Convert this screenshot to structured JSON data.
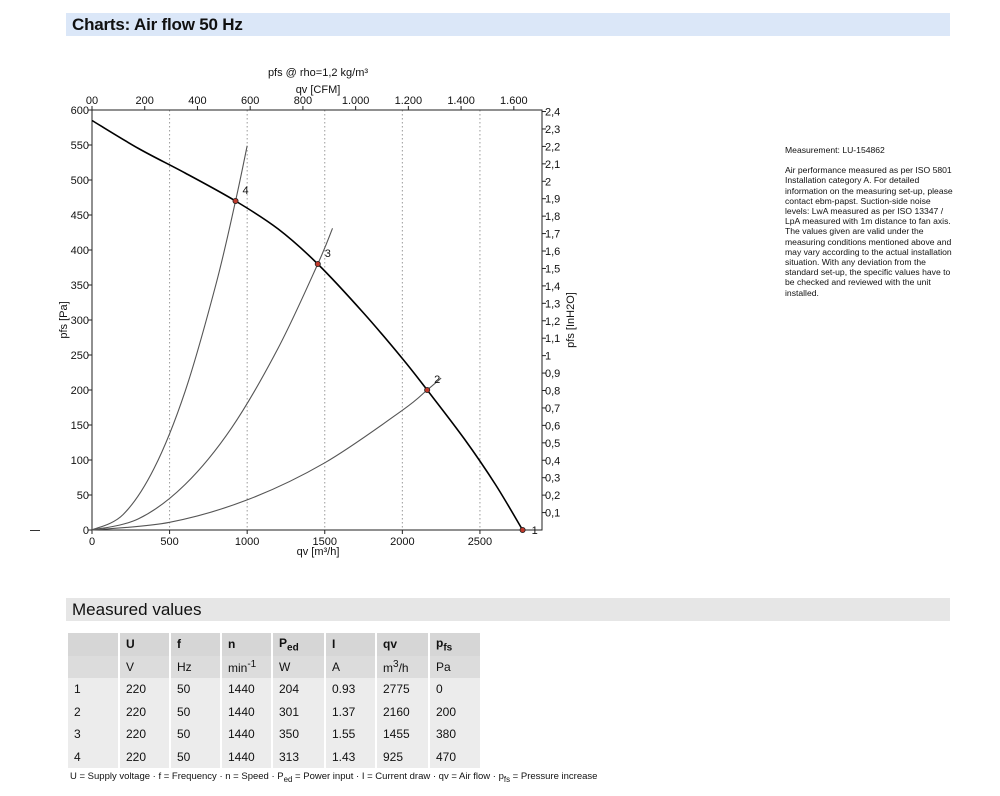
{
  "page": {
    "section_title": "Charts: Air flow 50 Hz",
    "measured_title": "Measured values"
  },
  "notes": {
    "measurement": "Measurement: LU-154862",
    "body": "Air performance measured as per ISO 5801 Installation category A. For detailed information on the measuring set-up, please contact ebm-papst. Suction-side noise levels: LwA measured as per ISO 13347 / LpA measured with 1m distance to fan axis. The values given are valid under the measuring conditions mentioned above and may vary according to the actual installation situation. With any deviation from the standard set-up, the specific values have to be checked and reviewed with the unit installed."
  },
  "chart_data": {
    "type": "line",
    "title": "pfs @ rho=1,2 kg/m³",
    "xlabel": "qv [m³/h]",
    "x2label": "qv [CFM]",
    "ylabel": "pfs [Pa]",
    "y2label": "pfs [InH2O]",
    "xlim": [
      0,
      2900
    ],
    "ylim": [
      0,
      600
    ],
    "x_ticks": [
      0,
      500,
      1000,
      1500,
      2000,
      2500
    ],
    "x_tick_labels": [
      "0",
      "500",
      "1000",
      "1500",
      "2000",
      "2500"
    ],
    "x2_ticks_cfm": [
      0,
      200,
      400,
      600,
      800,
      1000,
      1200,
      1400,
      1600
    ],
    "x2_tick_labels": [
      "00",
      "200",
      "400",
      "600",
      "800",
      "1.000",
      "1.200",
      "1.400",
      "1.600"
    ],
    "y_ticks": [
      0,
      50,
      100,
      150,
      200,
      250,
      300,
      350,
      400,
      450,
      500,
      550,
      600
    ],
    "y2_ticks_inh2o": [
      0.1,
      0.2,
      0.3,
      0.4,
      0.5,
      0.6,
      0.7,
      0.8,
      0.9,
      1.0,
      1.1,
      1.2,
      1.3,
      1.4,
      1.5,
      1.6,
      1.7,
      1.8,
      1.9,
      2.0,
      2.1,
      2.2,
      2.3,
      2.4
    ],
    "y2_tick_labels": [
      "0,1",
      "0,2",
      "0,3",
      "0,4",
      "0,5",
      "0,6",
      "0,7",
      "0,8",
      "0,9",
      "1",
      "1,1",
      "1,2",
      "1,3",
      "1,4",
      "1,5",
      "1,6",
      "1,7",
      "1,8",
      "1,9",
      "2",
      "2,1",
      "2,2",
      "2,3",
      "2,4"
    ],
    "grid": "vertical dotted",
    "series": [
      {
        "kind": "fan curve",
        "x": [
          0,
          300,
          600,
          925,
          1200,
          1455,
          1750,
          2000,
          2160,
          2400,
          2600,
          2775
        ],
        "y": [
          585,
          545,
          510,
          470,
          430,
          380,
          310,
          245,
          200,
          130,
          65,
          0
        ]
      },
      {
        "kind": "system curve",
        "label": "4",
        "x": [
          0,
          200,
          400,
          600,
          800,
          925,
          1000
        ],
        "y": [
          0,
          22,
          88,
          198,
          352,
          470,
          549
        ]
      },
      {
        "kind": "system curve",
        "label": "3",
        "x": [
          0,
          300,
          600,
          900,
          1200,
          1455,
          1550
        ],
        "y": [
          0,
          16,
          65,
          146,
          260,
          380,
          431
        ]
      },
      {
        "kind": "system curve",
        "label": "2",
        "x": [
          0,
          500,
          1000,
          1500,
          2000,
          2160,
          2250
        ],
        "y": [
          0,
          11,
          43,
          96,
          171,
          200,
          217
        ]
      }
    ],
    "points": [
      {
        "label": "1",
        "x": 2775,
        "y": 0
      },
      {
        "label": "2",
        "x": 2160,
        "y": 200
      },
      {
        "label": "3",
        "x": 1455,
        "y": 380
      },
      {
        "label": "4",
        "x": 925,
        "y": 470
      }
    ],
    "colors": {
      "fan_curve": "#000000",
      "system_curve": "#555555",
      "marker": "#c0392b",
      "grid": "#9a9a9a"
    }
  },
  "table": {
    "headers": [
      "",
      "U",
      "f",
      "n",
      "P_ed",
      "I",
      "qv",
      "p_fs"
    ],
    "header_display": [
      {
        "main": ""
      },
      {
        "main": "U"
      },
      {
        "main": "f"
      },
      {
        "main": "n"
      },
      {
        "main": "P",
        "sub": "ed"
      },
      {
        "main": "I"
      },
      {
        "main": "qv"
      },
      {
        "main": "p",
        "sub": "fs"
      }
    ],
    "units": [
      {
        "main": ""
      },
      {
        "main": "V"
      },
      {
        "main": "Hz"
      },
      {
        "main": "min",
        "sup": "-1"
      },
      {
        "main": "W"
      },
      {
        "main": "A"
      },
      {
        "main": "m",
        "sup": "3",
        "tail": "/h"
      },
      {
        "main": "Pa"
      }
    ],
    "rows": [
      [
        "1",
        "220",
        "50",
        "1440",
        "204",
        "0.93",
        "2775",
        "0"
      ],
      [
        "2",
        "220",
        "50",
        "1440",
        "301",
        "1.37",
        "2160",
        "200"
      ],
      [
        "3",
        "220",
        "50",
        "1440",
        "350",
        "1.55",
        "1455",
        "380"
      ],
      [
        "4",
        "220",
        "50",
        "1440",
        "313",
        "1.43",
        "925",
        "470"
      ]
    ]
  },
  "legend": [
    {
      "main": "U = Supply voltage · f = Frequency · n = Speed · P"
    },
    {
      "sub": "ed"
    },
    {
      "main": " = Power input · I = Current draw · qv = Air flow · p"
    },
    {
      "sub": "fs"
    },
    {
      "main": " = Pressure increase"
    }
  ]
}
